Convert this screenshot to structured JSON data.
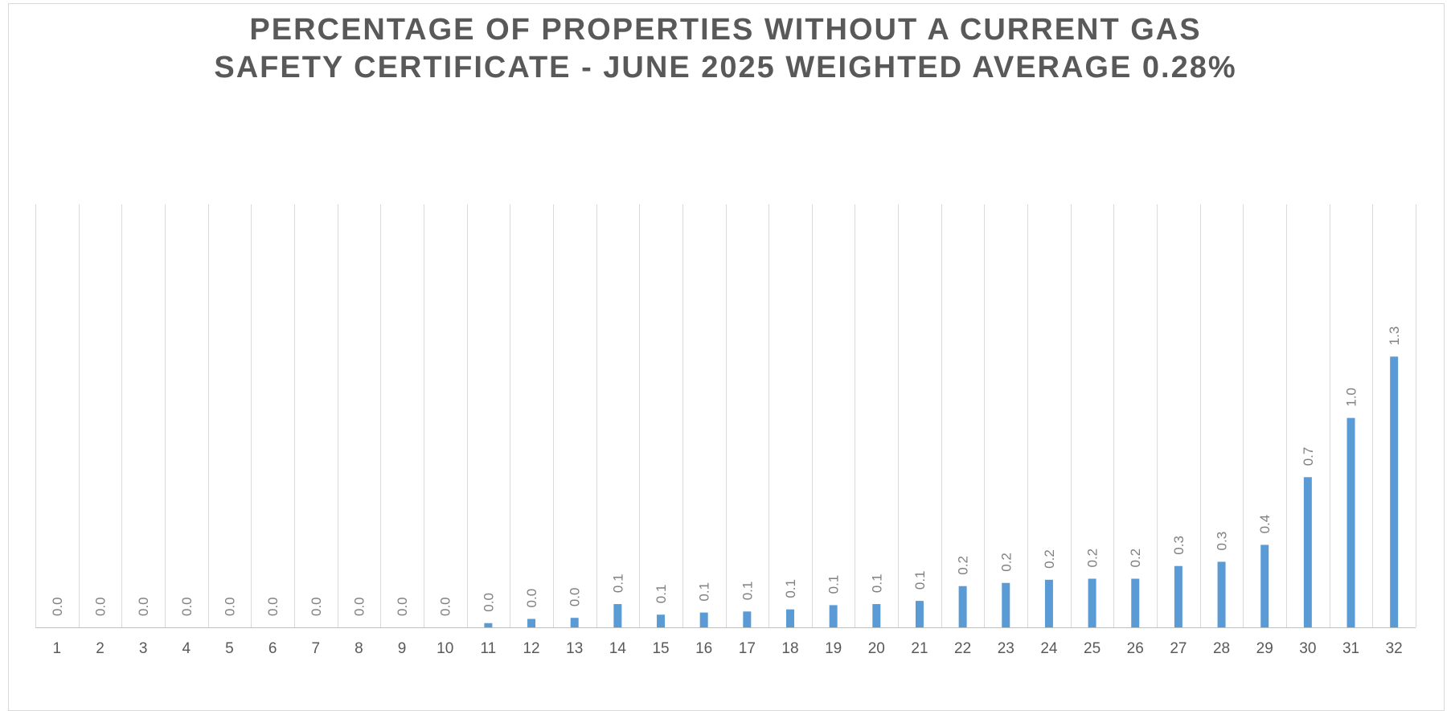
{
  "chart_data": {
    "type": "bar",
    "title_lines": [
      "PERCENTAGE OF PROPERTIES WITHOUT A CURRENT GAS",
      "SAFETY CERTIFICATE - JUNE 2025 WEIGHTED AVERAGE 0.28%"
    ],
    "categories": [
      "1",
      "2",
      "3",
      "4",
      "5",
      "6",
      "7",
      "8",
      "9",
      "10",
      "11",
      "12",
      "13",
      "14",
      "15",
      "16",
      "17",
      "18",
      "19",
      "20",
      "21",
      "22",
      "23",
      "24",
      "25",
      "26",
      "27",
      "28",
      "29",
      "30",
      "31",
      "32"
    ],
    "values": [
      0,
      0,
      0,
      0,
      0,
      0,
      0,
      0,
      0,
      0,
      0.02,
      0.04,
      0.045,
      0.11,
      0.06,
      0.07,
      0.075,
      0.085,
      0.105,
      0.11,
      0.125,
      0.195,
      0.21,
      0.225,
      0.23,
      0.23,
      0.29,
      0.31,
      0.39,
      0.71,
      0.99,
      1.28
    ],
    "data_labels": [
      "0.0",
      "0.0",
      "0.0",
      "0.0",
      "0.0",
      "0.0",
      "0.0",
      "0.0",
      "0.0",
      "0.0",
      "0.0",
      "0.0",
      "0.0",
      "0.1",
      "0.1",
      "0.1",
      "0.1",
      "0.1",
      "0.1",
      "0.1",
      "0.1",
      "0.2",
      "0.2",
      "0.2",
      "0.2",
      "0.2",
      "0.3",
      "0.3",
      "0.4",
      "0.7",
      "1.0",
      "1.3"
    ],
    "ylim": [
      0,
      2
    ],
    "grid": "vertical",
    "colors": {
      "bar": "#5b9bd5",
      "grid": "#d9d9d9",
      "axis": "#bfbfbf"
    }
  }
}
